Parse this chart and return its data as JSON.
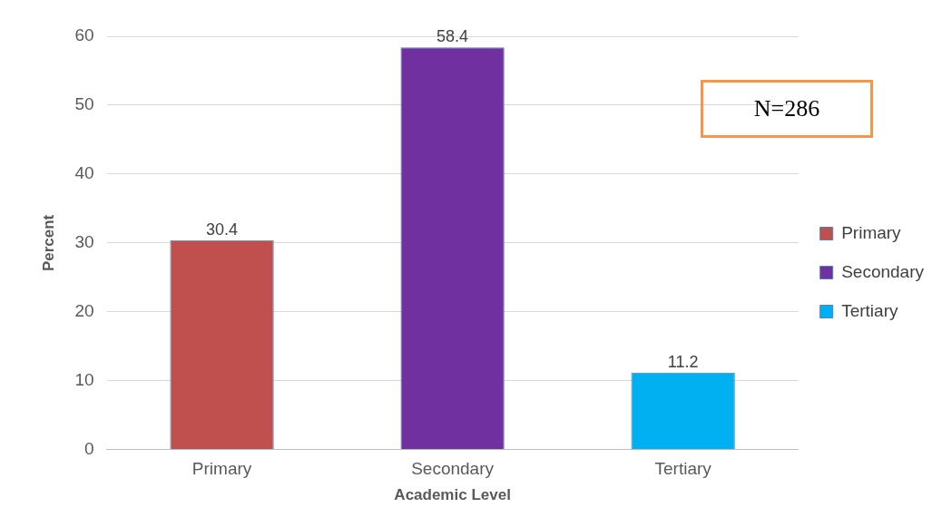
{
  "chart_data": {
    "type": "bar",
    "categories": [
      "Primary",
      "Secondary",
      "Tertiary"
    ],
    "series": [
      {
        "name": "Primary",
        "color": "#c0504d",
        "values": [
          30.4,
          null,
          null
        ]
      },
      {
        "name": "Secondary",
        "color": "#7030a0",
        "values": [
          null,
          58.4,
          null
        ]
      },
      {
        "name": "Tertiary",
        "color": "#00b0f0",
        "values": [
          null,
          null,
          11.2
        ]
      }
    ],
    "xlabel": "Academic Level",
    "ylabel": "Percent",
    "ylim": [
      0,
      60
    ],
    "yticks": [
      0,
      10,
      20,
      30,
      40,
      50,
      60
    ],
    "grid": "y",
    "data_labels": true,
    "legend": "right",
    "annotations": [
      "N=286"
    ]
  }
}
